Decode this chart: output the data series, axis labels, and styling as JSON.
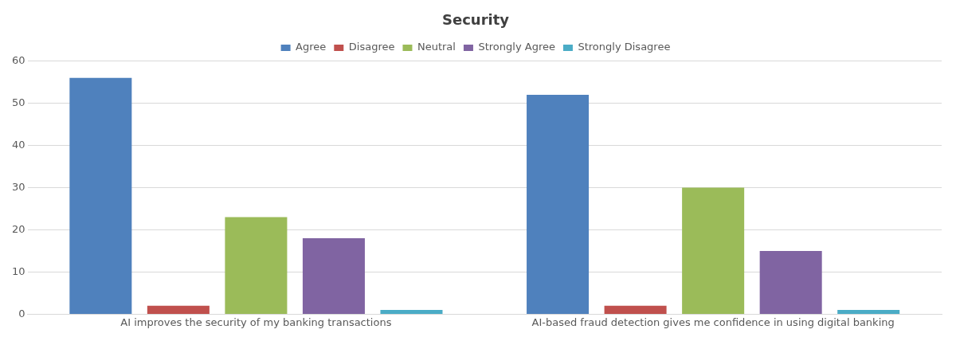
{
  "chart_data": {
    "type": "bar",
    "title": "Security",
    "categories": [
      "AI improves the security of my banking transactions",
      "AI-based fraud detection gives me confidence in using digital banking"
    ],
    "series": [
      {
        "name": "Agree",
        "color": "#4f81bd",
        "values": [
          56,
          52
        ]
      },
      {
        "name": "Disagree",
        "color": "#c0504d",
        "values": [
          2,
          2
        ]
      },
      {
        "name": "Neutral",
        "color": "#9bbb59",
        "values": [
          23,
          30
        ]
      },
      {
        "name": "Strongly Agree",
        "color": "#8064a2",
        "values": [
          18,
          15
        ]
      },
      {
        "name": "Strongly Disagree",
        "color": "#4bacc6",
        "values": [
          1,
          1
        ]
      }
    ],
    "ylim": [
      0,
      60
    ],
    "yticks": [
      0,
      10,
      20,
      30,
      40,
      50,
      60
    ],
    "grid": "y",
    "legend": "top"
  }
}
